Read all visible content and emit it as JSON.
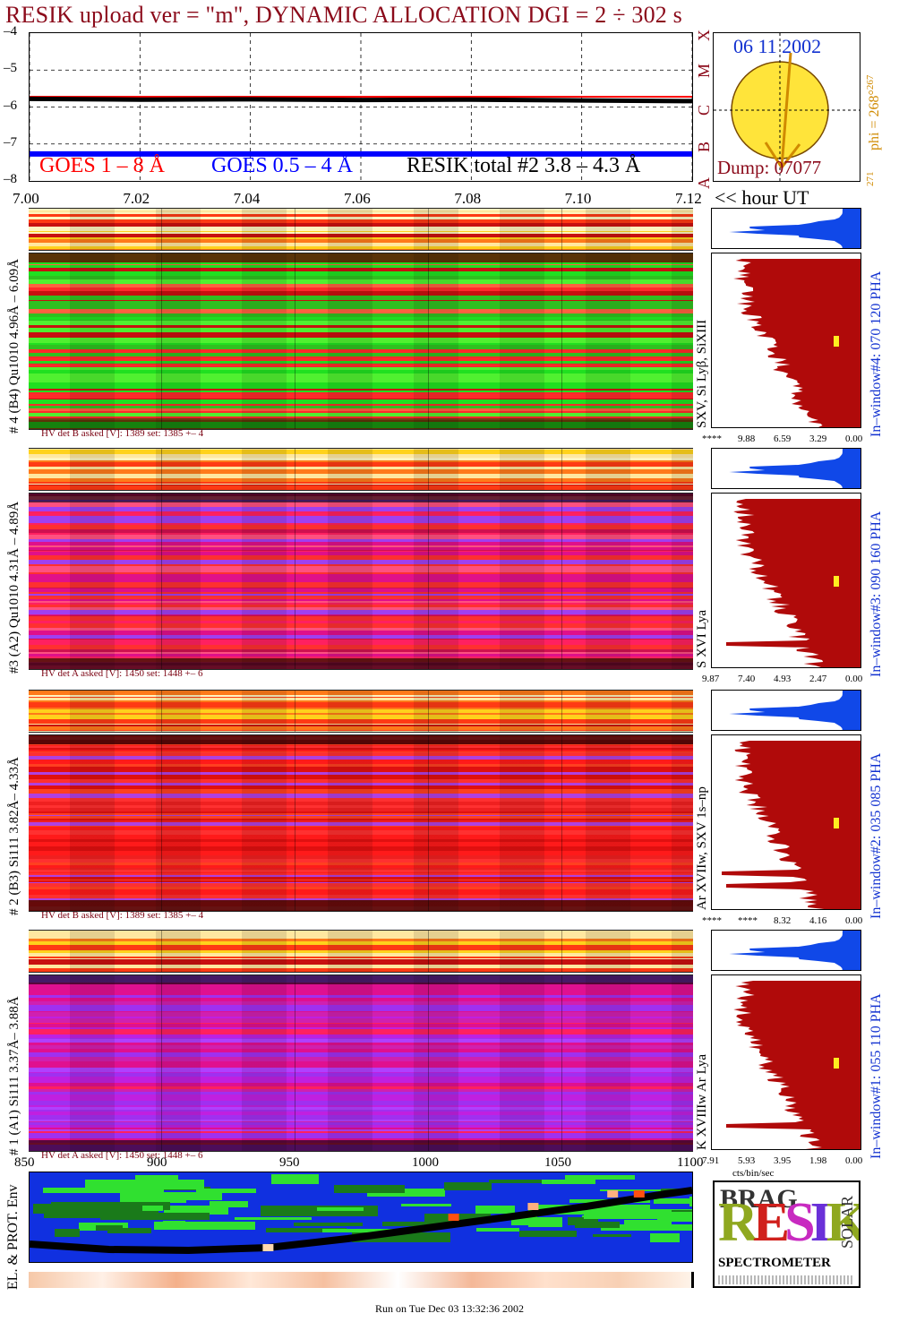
{
  "header": {
    "title": "RESIK upload ver = \"m\", DYNAMIC ALLOCATION  DGI =   2 ÷ 302 s"
  },
  "goes_panel": {
    "legend": {
      "goes_long": "GOES 1 – 8 Å",
      "goes_short": "GOES 0.5 – 4 Å",
      "resik_total": "RESIK total #2  3.8 – 4.3 Å"
    },
    "colors": {
      "goes_long": "#ff0000",
      "goes_short": "#0000ff",
      "resik_total": "#000000"
    },
    "flare_classes": [
      "A",
      "B",
      "C",
      "M",
      "X"
    ],
    "x_axis_unit": "<< hour UT"
  },
  "sun_panel": {
    "date": "06 11 2002",
    "dump": "Dump: 07077",
    "phi": "phi = 268°",
    "phi_sup": "267",
    "phi_low": "271"
  },
  "channels": [
    {
      "id": "ch4",
      "label": "# 4 (B4) Qu1010 4.96Å – 6.09Å",
      "lines": "SXV, Si Lyβ, SiXIII",
      "window": "In–window#4:  070 120 PHA",
      "hv": "HV det B asked [V]:  1389 set:  1385 +–    4",
      "pha_ticks": [
        "****",
        "9.88",
        "6.59",
        "3.29",
        "0.00"
      ],
      "palette": "green"
    },
    {
      "id": "ch3",
      "label": "#3 (A2) Qu1010  4.31Å – 4.89Å",
      "lines": "S XVI Lya",
      "window": "In–window#3:  090 160 PHA",
      "hv": "HV det A asked [V]:  1450 set:  1448 +–    6",
      "pha_ticks": [
        "9.87",
        "7.40",
        "4.93",
        "2.47",
        "0.00"
      ],
      "palette": "magenta"
    },
    {
      "id": "ch2",
      "label": "# 2 (B3) Si111  3.82Å– 4.33Å",
      "lines": "Ar XVIIw,  SXV 1s–np",
      "window": "In–window#2:  035 085 PHA",
      "hv": "HV det B asked [V]:  1389 set:  1385 +–    4",
      "pha_ticks": [
        "****",
        "****",
        "8.32",
        "4.16",
        "0.00"
      ],
      "palette": "red"
    },
    {
      "id": "ch1",
      "label": "# 1 (A1) Si111  3.37Å– 3.88Å",
      "lines": "K XVIIIw  Ar Lya",
      "window": "In–window#1:  055 110 PHA",
      "hv": "HV det A asked [V]:  1450 set:  1448 +–    6",
      "pha_ticks": [
        "7.91",
        "5.93",
        "3.95",
        "1.98",
        "0.00"
      ],
      "pha_unit": "cts/bin/sec",
      "palette": "violet"
    }
  ],
  "env_panel": {
    "label": "EL. & PROT. Env"
  },
  "logo": {
    "top": "BRAG",
    "main": "RESIK",
    "side": "SOLAR",
    "bottom": "SPECTROMETER"
  },
  "footer": {
    "run_info": "Run on Tue Dec 03 13:32:36 2002"
  },
  "chart_data": [
    {
      "type": "line",
      "title": "",
      "x_tick_labels": [
        "7.00",
        "7.02",
        "7.04",
        "7.06",
        "7.08",
        "7.10",
        "7.12"
      ],
      "xlim": [
        7.0,
        7.12
      ],
      "ylim": [
        -8,
        -4
      ],
      "y_tick_labels": [
        "–4",
        "–5",
        "–6",
        "–7",
        "–8"
      ],
      "series": [
        {
          "name": "GOES 1 – 8 Å",
          "x": [
            7.0,
            7.12
          ],
          "y": [
            -5.72,
            -5.72
          ]
        },
        {
          "name": "GOES 0.5 – 4 Å",
          "x": [
            7.0,
            7.12
          ],
          "y": [
            -7.27,
            -7.27
          ]
        },
        {
          "name": "RESIK total #2  3.8 – 4.3 Å",
          "x": [
            7.0,
            7.02,
            7.04,
            7.06,
            7.08,
            7.1,
            7.12
          ],
          "y": [
            -5.78,
            -5.8,
            -5.79,
            -5.81,
            -5.8,
            -5.82,
            -5.84
          ]
        }
      ]
    },
    {
      "type": "line",
      "title": "",
      "x_tick_labels": [
        "850",
        "900",
        "950",
        "1000",
        "1050",
        "1100"
      ],
      "xlim": [
        850,
        1100
      ],
      "series": [
        {
          "name": "",
          "x": [
            850,
            880,
            910,
            940,
            970,
            1000,
            1030,
            1060,
            1090,
            1100
          ],
          "y": [
            0.2,
            0.14,
            0.13,
            0.16,
            0.26,
            0.38,
            0.5,
            0.62,
            0.76,
            0.8
          ]
        }
      ]
    }
  ]
}
